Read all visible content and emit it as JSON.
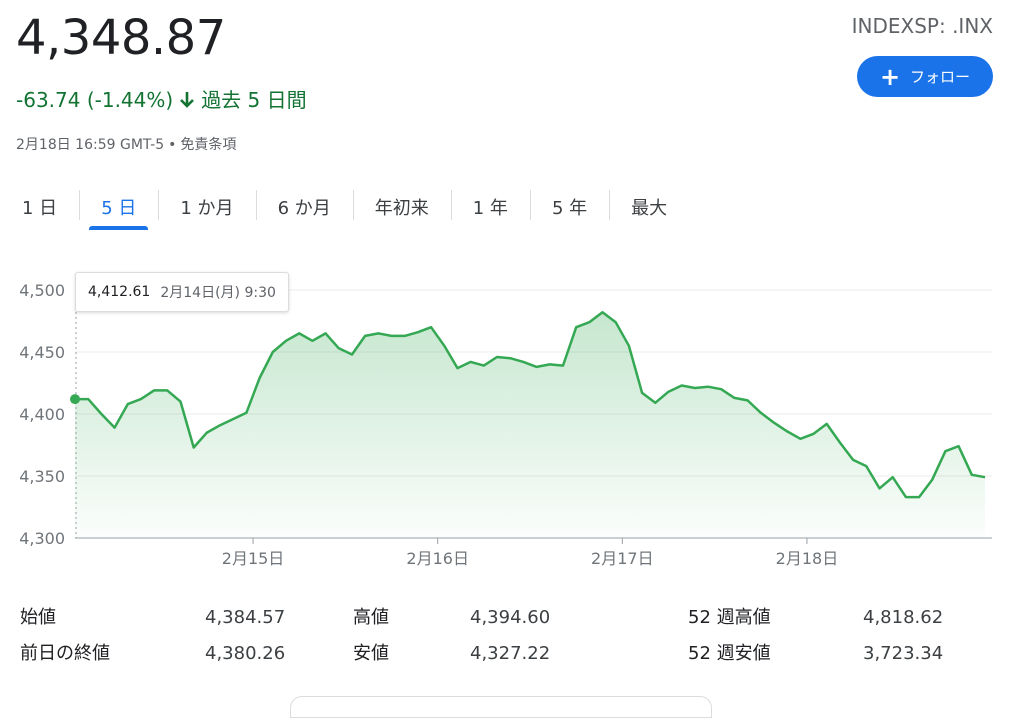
{
  "quote": {
    "price": "4,348.87",
    "change": "-63.74 (-1.44%)",
    "period": "過去 5 日間",
    "timestamp": "2月18日 16:59 GMT-5",
    "disclaimer": "免責条項",
    "change_color": "#137333"
  },
  "ticker": "INDEXSP: .INX",
  "follow_label": "フォロー",
  "tabs": [
    "1 日",
    "5 日",
    "1 か月",
    "6 か月",
    "年初来",
    "1 年",
    "5 年",
    "最大"
  ],
  "active_tab": "5 日",
  "tooltip": {
    "value": "4,412.61",
    "date": "2月14日(月) 9:30"
  },
  "chart_data": {
    "type": "area",
    "title": "",
    "xlabel": "",
    "ylabel": "",
    "ylim": [
      4300,
      4500
    ],
    "y_ticks": [
      "4,300",
      "4,350",
      "4,400",
      "4,450",
      "4,500"
    ],
    "y_tick_values": [
      4300,
      4350,
      4400,
      4450,
      4500
    ],
    "x_tick_labels": [
      "2月15日",
      "2月16日",
      "2月17日",
      "2月18日"
    ],
    "x_tick_index": [
      13.5,
      27.5,
      41.5,
      55.5
    ],
    "grid": true,
    "line_color": "#34a853",
    "series": [
      {
        "values": [
          4412,
          4412,
          4400,
          4389,
          4408,
          4412,
          4419,
          4419,
          4410,
          4373,
          4385,
          4391,
          4396,
          4401,
          4429,
          4450,
          4459,
          4465,
          4459,
          4465,
          4453,
          4448,
          4463,
          4465,
          4463,
          4463,
          4466,
          4470,
          4455,
          4437,
          4442,
          4439,
          4446,
          4445,
          4442,
          4438,
          4440,
          4439,
          4470,
          4474,
          4482,
          4474,
          4455,
          4417,
          4409,
          4418,
          4423,
          4421,
          4422,
          4420,
          4413,
          4411,
          4401,
          4393,
          4386,
          4380,
          4384,
          4392,
          4377,
          4363,
          4358,
          4340,
          4349,
          4333,
          4333,
          4347,
          4370,
          4374,
          4351,
          4349
        ]
      }
    ]
  },
  "stats": [
    [
      {
        "label": "始値",
        "value": "4,384.57"
      },
      {
        "label": "高値",
        "value": "4,394.60"
      },
      {
        "label": "52 週高値",
        "value": "4,818.62"
      }
    ],
    [
      {
        "label": "前日の終値",
        "value": "4,380.26"
      },
      {
        "label": "安値",
        "value": "4,327.22"
      },
      {
        "label": "52 週安値",
        "value": "3,723.34"
      }
    ]
  ]
}
